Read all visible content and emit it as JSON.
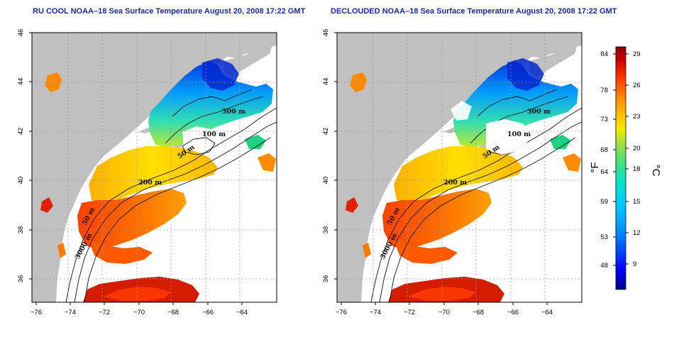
{
  "panels": [
    {
      "title": "RU COOL NOAA–18 Sea Surface Temperature August 20, 2008 17:22 GMT",
      "contour_labels": [
        "300 m",
        "100 m",
        "50 m",
        "200 m",
        "50 m",
        "3000 m"
      ]
    },
    {
      "title": "DECLOUDED NOAA–18 Sea Surface Temperature August 20, 2008 17:22 GMT",
      "contour_labels": [
        "300 m",
        "100 m",
        "50 m",
        "200 m",
        "50 m",
        "3000 m"
      ]
    }
  ],
  "axes": {
    "longitude_ticks": [
      "−76",
      "−74",
      "−72",
      "−70",
      "−68",
      "−66",
      "−64"
    ],
    "latitude_ticks": [
      "46",
      "44",
      "42",
      "40",
      "38",
      "36"
    ]
  },
  "colorbar": {
    "fahrenheit_ticks": [
      "84",
      "78",
      "73",
      "68",
      "64",
      "59",
      "53",
      "48"
    ],
    "celsius_ticks": [
      "29",
      "26",
      "23",
      "20",
      "18",
      "15",
      "12",
      "9"
    ],
    "fahrenheit_unit": "°F",
    "celsius_unit": "°C"
  },
  "colors": {
    "title": "#1a2a9c",
    "land": "#c0c0c0",
    "ocean_nodata": "#ffffff",
    "grid": "#9a9a9a",
    "scale": [
      "#00008b",
      "#0000ff",
      "#0080ff",
      "#00c8ff",
      "#00e5c8",
      "#40e080",
      "#90e040",
      "#f0f000",
      "#ffc000",
      "#ff8000",
      "#ff3000",
      "#c80000",
      "#8b0000"
    ]
  }
}
